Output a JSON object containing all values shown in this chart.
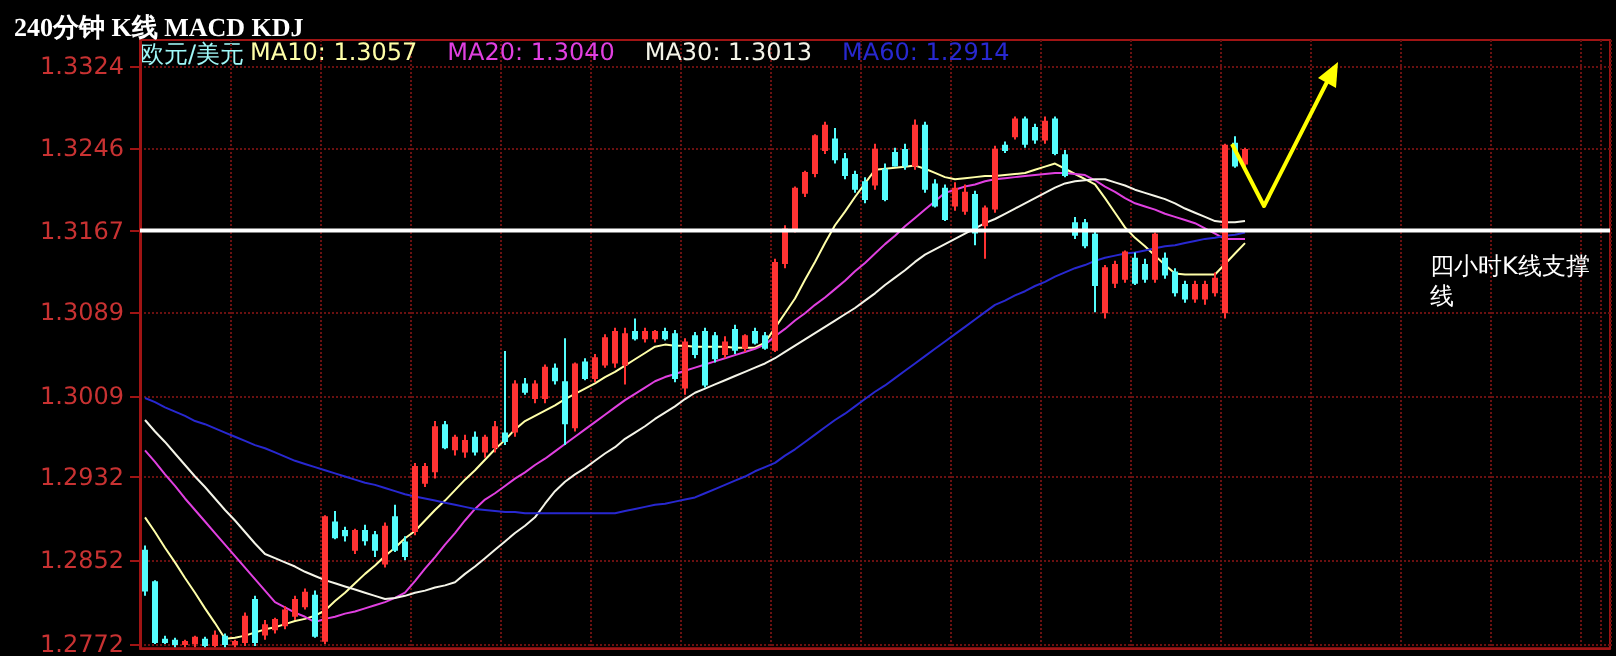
{
  "chart_data": {
    "type": "candlestick",
    "title": "240分钟 K线 MACD KDJ",
    "subtitle": "欧元/美元",
    "categories": [
      null,
      null,
      null,
      null,
      null,
      null,
      null,
      null,
      null,
      null,
      null,
      null,
      null,
      null,
      null,
      null,
      null,
      null,
      null,
      null,
      null,
      null,
      null,
      null,
      null,
      null,
      null,
      null,
      null,
      null,
      null,
      null,
      null,
      null,
      null,
      null,
      null,
      null,
      null,
      null,
      null,
      null,
      null,
      null,
      null,
      null,
      null,
      null,
      null,
      null,
      null,
      null,
      null,
      null,
      null,
      null,
      null,
      null,
      null,
      null,
      null,
      null,
      null,
      null,
      null,
      null,
      null,
      null,
      null,
      null,
      null,
      null,
      null,
      null,
      null,
      null,
      null,
      null,
      null,
      null,
      null,
      null,
      null,
      null,
      null,
      null,
      null,
      null,
      null,
      null,
      null,
      null,
      null,
      null,
      null,
      null,
      null,
      null,
      null,
      null,
      null,
      null,
      null,
      null,
      null,
      null,
      null,
      null,
      null,
      null,
      null,
      null,
      null,
      null,
      null,
      null,
      null,
      null,
      null,
      null,
      null,
      null,
      null,
      null,
      null,
      null,
      null,
      null,
      null,
      null,
      null,
      null,
      null,
      null,
      null,
      null,
      null,
      null,
      null,
      null,
      null,
      null,
      null,
      null,
      null,
      null,
      null
    ],
    "colors": [
      "#54fcfc",
      "#54fcfc",
      "#54fcfc",
      "#54fcfc",
      "#ff3232",
      "#ff3232",
      "#54fcfc",
      "#ff3232",
      "#54fcfc",
      "#ff3232",
      "#ff3232",
      "#54fcfc",
      "#ff3232",
      "#ff3232",
      "#ff3232",
      "#ff3232",
      "#ff3232",
      "#54fcfc",
      "#ff3232",
      "#54fcfc",
      "#54fcfc",
      "#ff3232",
      "#54fcfc",
      "#54fcfc",
      "#ff3232",
      "#54fcfc",
      "#54fcfc",
      "#ff3232",
      "#ff3232",
      "#ff3232",
      "#54fcfc",
      "#ff3232",
      "#ff3232",
      "#54fcfc",
      "#ff3232",
      "#ff3232",
      "#54fcfc",
      "#ff3232",
      "#54fcfc",
      "#ff3232",
      "#ff3232",
      "#54fcfc",
      "#54fcfc",
      "#ff3232",
      "#54fcfc",
      "#ff3232",
      "#ff3232",
      "#ff3232",
      "#ff3232",
      "#54fcfc",
      "#ff3232",
      "#ff3232",
      "#54fcfc",
      "#54fcfc",
      "#ff3232",
      "#54fcfc",
      "#54fcfc",
      "#54fcfc",
      "#ff3232",
      "#54fcfc",
      "#ff3232",
      "#54fcfc",
      "#54fcfc",
      "#ff3232",
      "#ff3232",
      "#ff3232",
      "#ff3232",
      "#ff3232",
      "#ff3232",
      "#54fcfc",
      "#54fcfc",
      "#54fcfc",
      "#54fcfc",
      "#ff3232",
      "#54fcfc",
      "#54fcfc",
      "#54fcfc",
      "#ff3232",
      "#54fcfc",
      "#54fcfc",
      "#54fcfc",
      "#ff3232",
      "#ff3232",
      "#54fcfc",
      "#ff3232",
      "#ff3232",
      "#54fcfc",
      "#ff3232",
      "#54fcfc",
      "#54fcfc",
      "#ff3232",
      "#54fcfc",
      "#54fcfc",
      "#54fcfc",
      "#54fcfc",
      "#54fcfc",
      "#ff3232",
      "#ff3232",
      "#ff3232",
      "#54fcfc",
      "#54fcfc",
      "#ff3232",
      "#54fcfc",
      "#54fcfc",
      "#54fcfc",
      "#ff3232",
      "#ff3232",
      "#ff3232",
      "#ff3232",
      "#54fcfc",
      "#ff3232",
      null,
      null,
      null,
      null,
      null,
      null,
      null,
      null,
      null,
      null,
      null,
      null,
      null,
      null,
      null,
      null,
      null,
      null,
      null,
      null,
      null,
      null,
      null,
      null,
      null,
      null,
      null,
      null,
      null,
      null,
      null,
      null,
      null,
      null,
      null,
      null
    ],
    "ohlc": [
      [
        1.2861,
        1.2866,
        1.2818,
        1.2823
      ],
      [
        1.2831,
        1.2833,
        1.2772,
        1.2774
      ],
      [
        1.2776,
        1.278,
        1.2772,
        1.2774
      ],
      [
        1.2775,
        1.2778,
        1.2769,
        1.2772
      ],
      [
        1.2772,
        1.2776,
        1.2769,
        1.2774
      ],
      [
        1.2773,
        1.278,
        1.2769,
        1.2778
      ],
      [
        1.2776,
        1.2779,
        1.2769,
        1.2771
      ],
      [
        1.2771,
        1.2785,
        1.2769,
        1.278
      ],
      [
        1.2779,
        1.2782,
        1.2769,
        1.2772
      ],
      [
        1.2772,
        1.2776,
        1.2769,
        1.2774
      ],
      [
        1.2774,
        1.2802,
        1.277,
        1.2798
      ],
      [
        1.2814,
        1.2818,
        1.277,
        1.2774
      ],
      [
        1.2781,
        1.2795,
        1.2776,
        1.279
      ],
      [
        1.2786,
        1.2797,
        1.2782,
        1.2795
      ],
      [
        1.279,
        1.2808,
        1.2786,
        1.2804
      ],
      [
        1.2799,
        1.2818,
        1.2795,
        1.2814
      ],
      [
        1.2808,
        1.2825,
        1.2805,
        1.2821
      ],
      [
        1.2818,
        1.2823,
        1.2778,
        1.278
      ],
      [
        1.2775,
        1.2895,
        1.2772,
        1.2893
      ],
      [
        1.2888,
        1.2899,
        1.2872,
        1.2874
      ],
      [
        1.288,
        1.2884,
        1.287,
        1.2876
      ],
      [
        1.2862,
        1.2882,
        1.2858,
        1.288
      ],
      [
        1.288,
        1.2886,
        1.2866,
        1.2871
      ],
      [
        1.2876,
        1.288,
        1.2855,
        1.2862
      ],
      [
        1.2849,
        1.2888,
        1.2845,
        1.2884
      ],
      [
        1.2893,
        1.2905,
        1.286,
        1.2862
      ],
      [
        1.2869,
        1.2875,
        1.2852,
        1.2856
      ],
      [
        1.288,
        1.2945,
        1.2876,
        1.2941
      ],
      [
        1.2926,
        1.2945,
        1.2922,
        1.2941
      ],
      [
        1.2937,
        1.2985,
        1.293,
        1.2979
      ],
      [
        1.2981,
        1.2985,
        1.2958,
        1.296
      ],
      [
        1.2958,
        1.2972,
        1.2952,
        1.2969
      ],
      [
        1.2956,
        1.2972,
        1.295,
        1.2966
      ],
      [
        1.2969,
        1.2975,
        1.2952,
        1.2956
      ],
      [
        1.2956,
        1.2972,
        1.295,
        1.2969
      ],
      [
        1.296,
        1.2985,
        1.2955,
        1.2979
      ],
      [
        1.2973,
        1.3052,
        1.2962,
        1.2966
      ],
      [
        1.2975,
        1.3024,
        1.297,
        1.302
      ],
      [
        1.302,
        1.3026,
        1.301,
        1.3013
      ],
      [
        1.3007,
        1.3024,
        1.3002,
        1.302
      ],
      [
        1.3007,
        1.3039,
        1.3002,
        1.3036
      ],
      [
        1.3035,
        1.304,
        1.302,
        1.3024
      ],
      [
        1.3022,
        1.3064,
        1.2962,
        1.2983
      ],
      [
        1.2979,
        1.3041,
        1.2975,
        1.3039
      ],
      [
        1.3041,
        1.3045,
        1.3024,
        1.3026
      ],
      [
        1.3026,
        1.3049,
        1.3022,
        1.3045
      ],
      [
        1.3039,
        1.3068,
        1.3036,
        1.3064
      ],
      [
        1.3041,
        1.3074,
        1.3036,
        1.307
      ],
      [
        1.3039,
        1.3074,
        1.302,
        1.3068
      ],
      [
        1.307,
        1.3083,
        1.3062,
        1.3064
      ],
      [
        1.3064,
        1.3074,
        1.306,
        1.307
      ],
      [
        1.3064,
        1.3072,
        1.306,
        1.307
      ],
      [
        1.307,
        1.3074,
        1.3062,
        1.3064
      ],
      [
        1.3068,
        1.3072,
        1.3022,
        1.3026
      ],
      [
        1.3017,
        1.3064,
        1.301,
        1.306
      ],
      [
        1.3066,
        1.307,
        1.3045,
        1.3049
      ],
      [
        1.307,
        1.3074,
        1.3017,
        1.302
      ],
      [
        1.3066,
        1.307,
        1.3041,
        1.3045
      ],
      [
        1.3049,
        1.3066,
        1.3045,
        1.306
      ],
      [
        1.3072,
        1.3077,
        1.3049,
        1.3053
      ],
      [
        1.3055,
        1.3068,
        1.3051,
        1.3066
      ],
      [
        1.307,
        1.3074,
        1.3058,
        1.306
      ],
      [
        1.3066,
        1.307,
        1.3053,
        1.3055
      ],
      [
        1.3053,
        1.314,
        1.3051,
        1.3136
      ],
      [
        1.3136,
        1.3172,
        1.3131,
        1.3168
      ],
      [
        1.3168,
        1.3209,
        1.3165,
        1.3207
      ],
      [
        1.3203,
        1.3224,
        1.3199,
        1.3222
      ],
      [
        1.3222,
        1.3259,
        1.3218,
        1.3257
      ],
      [
        1.3244,
        1.3271,
        1.324,
        1.3267
      ],
      [
        1.3254,
        1.3265,
        1.3231,
        1.3235
      ],
      [
        1.3235,
        1.3241,
        1.3216,
        1.322
      ],
      [
        1.322,
        1.3224,
        1.3203,
        1.3207
      ],
      [
        1.3213,
        1.3218,
        1.3193,
        1.3197
      ],
      [
        1.3211,
        1.325,
        1.3206,
        1.3244
      ],
      [
        1.3225,
        1.3231,
        1.3195,
        1.3197
      ],
      [
        1.3241,
        1.3246,
        1.3228,
        1.3229
      ],
      [
        1.3244,
        1.325,
        1.3225,
        1.3229
      ],
      [
        1.3229,
        1.3273,
        1.3225,
        1.3267
      ],
      [
        1.3267,
        1.3271,
        1.3203,
        1.3207
      ],
      [
        1.3211,
        1.3216,
        1.3189,
        1.3191
      ],
      [
        1.3207,
        1.3211,
        1.3176,
        1.3178
      ],
      [
        1.3191,
        1.3213,
        1.3186,
        1.3207
      ],
      [
        1.3186,
        1.3211,
        1.3182,
        1.3203
      ],
      [
        1.3201,
        1.3205,
        1.3153,
        1.3165
      ],
      [
        1.3172,
        1.3191,
        1.314,
        1.3188
      ],
      [
        1.3188,
        1.3248,
        1.3184,
        1.3244
      ],
      [
        1.3248,
        1.3252,
        1.3241,
        1.3244
      ],
      [
        1.3257,
        1.3276,
        1.3254,
        1.3273
      ],
      [
        1.3273,
        1.3276,
        1.3246,
        1.325
      ],
      [
        1.3265,
        1.3269,
        1.325,
        1.3254
      ],
      [
        1.3254,
        1.3276,
        1.325,
        1.3271
      ],
      [
        1.3273,
        1.3276,
        1.3239,
        1.3241
      ],
      [
        1.3239,
        1.3244,
        1.3218,
        1.322
      ],
      [
        1.3174,
        1.318,
        1.3159,
        1.3163
      ],
      [
        1.3174,
        1.3178,
        1.315,
        1.3153
      ],
      [
        1.3163,
        1.3167,
        1.3089,
        1.3115
      ],
      [
        1.3089,
        1.3134,
        1.3083,
        1.3131
      ],
      [
        1.3117,
        1.3138,
        1.3112,
        1.3134
      ],
      [
        1.3121,
        1.3148,
        1.3117,
        1.3146
      ],
      [
        1.314,
        1.3146,
        1.3115,
        1.3117
      ],
      [
        1.3134,
        1.314,
        1.3117,
        1.3121
      ],
      [
        1.3121,
        1.3165,
        1.3117,
        1.3163
      ],
      [
        1.314,
        1.3146,
        1.3121,
        1.3125
      ],
      [
        1.3127,
        1.3131,
        1.3104,
        1.3108
      ],
      [
        1.3115,
        1.3119,
        1.3098,
        1.3102
      ],
      [
        1.3102,
        1.3119,
        1.3098,
        1.3115
      ],
      [
        1.3102,
        1.3119,
        1.3096,
        1.3115
      ],
      [
        1.3108,
        1.3127,
        1.3104,
        1.3121
      ],
      [
        1.3089,
        1.325,
        1.3083,
        1.3248
      ],
      [
        1.325,
        1.3257,
        1.3227,
        1.3229
      ],
      [
        1.3231,
        1.3246,
        1.3227,
        1.3244
      ],
      null,
      null,
      null,
      null,
      null,
      null,
      null,
      null,
      null,
      null,
      null,
      null,
      null,
      null,
      null,
      null,
      null,
      null,
      null,
      null,
      null,
      null,
      null,
      null,
      null,
      null,
      null,
      null,
      null,
      null,
      null,
      null,
      null,
      null,
      null,
      null
    ],
    "series": [
      {
        "name": "MA10: 1.3057",
        "type": "line",
        "color": "#ffffa8",
        "values": [
          1.2893,
          1.2879,
          1.2864,
          1.285,
          1.2835,
          1.2821,
          1.2806,
          1.2792,
          1.2777,
          1.2778,
          1.278,
          1.2783,
          1.2786,
          1.2788,
          1.2791,
          1.2794,
          1.2796,
          1.2799,
          1.2804,
          1.2813,
          1.2821,
          1.283,
          1.2839,
          1.2847,
          1.2856,
          1.2864,
          1.2873,
          1.288,
          1.289,
          1.29,
          1.2909,
          1.2919,
          1.2929,
          1.2938,
          1.2948,
          1.2958,
          1.2967,
          1.2977,
          1.2985,
          1.299,
          1.2995,
          1.3,
          1.3006,
          1.3011,
          1.3016,
          1.3021,
          1.3027,
          1.3032,
          1.3038,
          1.3044,
          1.305,
          1.3056,
          1.3058,
          1.3057,
          1.3057,
          1.3056,
          1.3056,
          1.3056,
          1.3056,
          1.3055,
          1.3055,
          1.3055,
          1.306,
          1.3074,
          1.3088,
          1.3102,
          1.312,
          1.3137,
          1.3155,
          1.3172,
          1.3185,
          1.3199,
          1.3212,
          1.3225,
          1.3226,
          1.3227,
          1.3228,
          1.3229,
          1.3226,
          1.3222,
          1.3218,
          1.3216,
          1.3217,
          1.3218,
          1.3219,
          1.3219,
          1.322,
          1.3221,
          1.3222,
          1.3225,
          1.3228,
          1.3231,
          1.3226,
          1.3221,
          1.3216,
          1.3211,
          1.3198,
          1.3184,
          1.317,
          1.316,
          1.3152,
          1.3143,
          1.3134,
          1.3126,
          1.3125,
          1.3125,
          1.3125,
          1.3125,
          1.3135,
          1.3145,
          1.3155,
          null,
          null,
          null,
          null,
          null,
          null,
          null,
          null,
          null,
          null,
          null,
          null,
          null,
          null,
          null,
          null,
          null,
          null,
          null,
          null,
          null,
          null,
          null,
          null,
          null,
          null,
          null,
          null,
          null,
          null,
          null,
          null,
          null,
          null,
          null,
          null
        ]
      },
      {
        "name": "MA20: 1.3040",
        "type": "line",
        "color": "#e040e0",
        "values": [
          1.2957,
          1.2946,
          1.2934,
          1.2923,
          1.2911,
          1.29,
          1.2889,
          1.2878,
          1.2867,
          1.2856,
          1.2845,
          1.2834,
          1.2823,
          1.2812,
          1.2807,
          1.2802,
          1.2798,
          1.2793,
          1.2796,
          1.2798,
          1.2801,
          1.2803,
          1.2806,
          1.2809,
          1.2812,
          1.2816,
          1.2821,
          1.2832,
          1.2844,
          1.2855,
          1.2867,
          1.2878,
          1.289,
          1.2901,
          1.291,
          1.2916,
          1.2923,
          1.293,
          1.2936,
          1.2943,
          1.2949,
          1.2956,
          1.2963,
          1.297,
          1.2977,
          1.2984,
          1.2991,
          1.2998,
          1.3005,
          1.3011,
          1.3017,
          1.3023,
          1.3027,
          1.303,
          1.3033,
          1.3036,
          1.3039,
          1.3042,
          1.3045,
          1.3048,
          1.3051,
          1.3054,
          1.3058,
          1.3066,
          1.3073,
          1.3081,
          1.3088,
          1.3096,
          1.3103,
          1.3111,
          1.3119,
          1.3128,
          1.3136,
          1.3145,
          1.3154,
          1.3162,
          1.3171,
          1.3179,
          1.3187,
          1.3195,
          1.3203,
          1.3206,
          1.3209,
          1.3211,
          1.3214,
          1.3216,
          1.3217,
          1.3218,
          1.3219,
          1.322,
          1.3221,
          1.3222,
          1.3222,
          1.3221,
          1.322,
          1.3215,
          1.3209,
          1.3204,
          1.3198,
          1.3193,
          1.319,
          1.3187,
          1.3183,
          1.318,
          1.3177,
          1.3174,
          1.3169,
          1.3164,
          1.3159,
          1.3159,
          1.3159,
          null,
          null,
          null,
          null,
          null,
          null,
          null,
          null,
          null,
          null,
          null,
          null,
          null,
          null,
          null,
          null,
          null,
          null,
          null,
          null,
          null,
          null,
          null,
          null,
          null,
          null,
          null,
          null,
          null,
          null,
          null,
          null,
          null,
          null,
          null,
          null
        ]
      },
      {
        "name": "MA30: 1.3013",
        "type": "line",
        "color": "#f4f4e8",
        "values": [
          1.2986,
          1.2975,
          1.2965,
          1.2954,
          1.2943,
          1.2932,
          1.2922,
          1.2911,
          1.29,
          1.289,
          1.2879,
          1.2868,
          1.2858,
          1.2854,
          1.285,
          1.2846,
          1.2841,
          1.2837,
          1.2833,
          1.283,
          1.2827,
          1.2824,
          1.2821,
          1.2818,
          1.2815,
          1.2816,
          1.2818,
          1.2821,
          1.2823,
          1.2826,
          1.2828,
          1.2831,
          1.2839,
          1.2846,
          1.2854,
          1.2862,
          1.287,
          1.2878,
          1.2885,
          1.2893,
          1.2906,
          1.2918,
          1.2927,
          1.2934,
          1.294,
          1.2947,
          1.2954,
          1.296,
          1.2968,
          1.2974,
          1.298,
          1.2987,
          1.2993,
          1.2999,
          1.3006,
          1.3012,
          1.3016,
          1.302,
          1.3024,
          1.3028,
          1.3032,
          1.3036,
          1.304,
          1.3045,
          1.3051,
          1.3057,
          1.3063,
          1.3069,
          1.3075,
          1.3081,
          1.3087,
          1.3093,
          1.31,
          1.3107,
          1.3115,
          1.3122,
          1.3129,
          1.3137,
          1.3144,
          1.3149,
          1.3154,
          1.3159,
          1.3164,
          1.3169,
          1.3174,
          1.3178,
          1.3183,
          1.3188,
          1.3193,
          1.3198,
          1.3203,
          1.3208,
          1.3212,
          1.3214,
          1.3215,
          1.3216,
          1.3216,
          1.3213,
          1.321,
          1.3206,
          1.3203,
          1.32,
          1.3197,
          1.3193,
          1.3188,
          1.3184,
          1.318,
          1.3176,
          1.3175,
          1.3175,
          1.3176,
          null,
          null,
          null,
          null,
          null,
          null,
          null,
          null,
          null,
          null,
          null,
          null,
          null,
          null,
          null,
          null,
          null,
          null,
          null,
          null,
          null,
          null,
          null,
          null,
          null,
          null,
          null,
          null,
          null,
          null,
          null,
          null,
          null,
          null,
          null,
          null
        ]
      },
      {
        "name": "MA60: 1.2914",
        "type": "line",
        "color": "#2828d0",
        "values": [
          1.3007,
          1.3003,
          1.2998,
          1.2994,
          1.299,
          1.2985,
          1.2982,
          1.2978,
          1.2974,
          1.297,
          1.2966,
          1.2962,
          1.2959,
          1.2955,
          1.2951,
          1.2947,
          1.2944,
          1.2941,
          1.2938,
          1.2935,
          1.2932,
          1.2929,
          1.2926,
          1.2924,
          1.2921,
          1.2918,
          1.2915,
          1.2913,
          1.2911,
          1.2909,
          1.2907,
          1.2905,
          1.2903,
          1.2901,
          1.29,
          1.2899,
          1.2898,
          1.2898,
          1.2897,
          1.2897,
          1.2897,
          1.2897,
          1.2897,
          1.2897,
          1.2897,
          1.2897,
          1.2897,
          1.2897,
          1.2899,
          1.2901,
          1.2903,
          1.2905,
          1.2906,
          1.2908,
          1.291,
          1.2912,
          1.2916,
          1.292,
          1.2924,
          1.2928,
          1.2932,
          1.2937,
          1.2941,
          1.2945,
          1.2952,
          1.2958,
          1.2965,
          1.2972,
          1.2979,
          1.2986,
          1.2992,
          1.2999,
          1.3006,
          1.3013,
          1.3019,
          1.3026,
          1.3033,
          1.304,
          1.3047,
          1.3054,
          1.3061,
          1.3068,
          1.3075,
          1.3082,
          1.3089,
          1.3096,
          1.31,
          1.3105,
          1.3109,
          1.3114,
          1.3118,
          1.3123,
          1.3127,
          1.3131,
          1.3134,
          1.3138,
          1.3141,
          1.3143,
          1.3145,
          1.3146,
          1.3148,
          1.315,
          1.3152,
          1.3153,
          1.3155,
          1.3157,
          1.3159,
          1.316,
          1.3162,
          1.3163,
          1.3165,
          null,
          null,
          null,
          null,
          null,
          null,
          null,
          null,
          null,
          null,
          null,
          null,
          null,
          null,
          null,
          null,
          null,
          null,
          null,
          null,
          null,
          null,
          null,
          null,
          null,
          null,
          null,
          null,
          null,
          null,
          null,
          null,
          null,
          null,
          null,
          null
        ]
      }
    ],
    "ref_lines": [
      {
        "axis": "y",
        "value": 1.3167,
        "label": "四小时K线支撑线",
        "color": "#ffffff"
      }
    ],
    "ylim": [
      1.2768,
      1.3349
    ],
    "yticks": [
      1.2772,
      1.2852,
      1.2932,
      1.3009,
      1.3089,
      1.3167,
      1.3246,
      1.3324
    ],
    "grid": true,
    "legend": "top left",
    "tick_labels": "y"
  }
}
